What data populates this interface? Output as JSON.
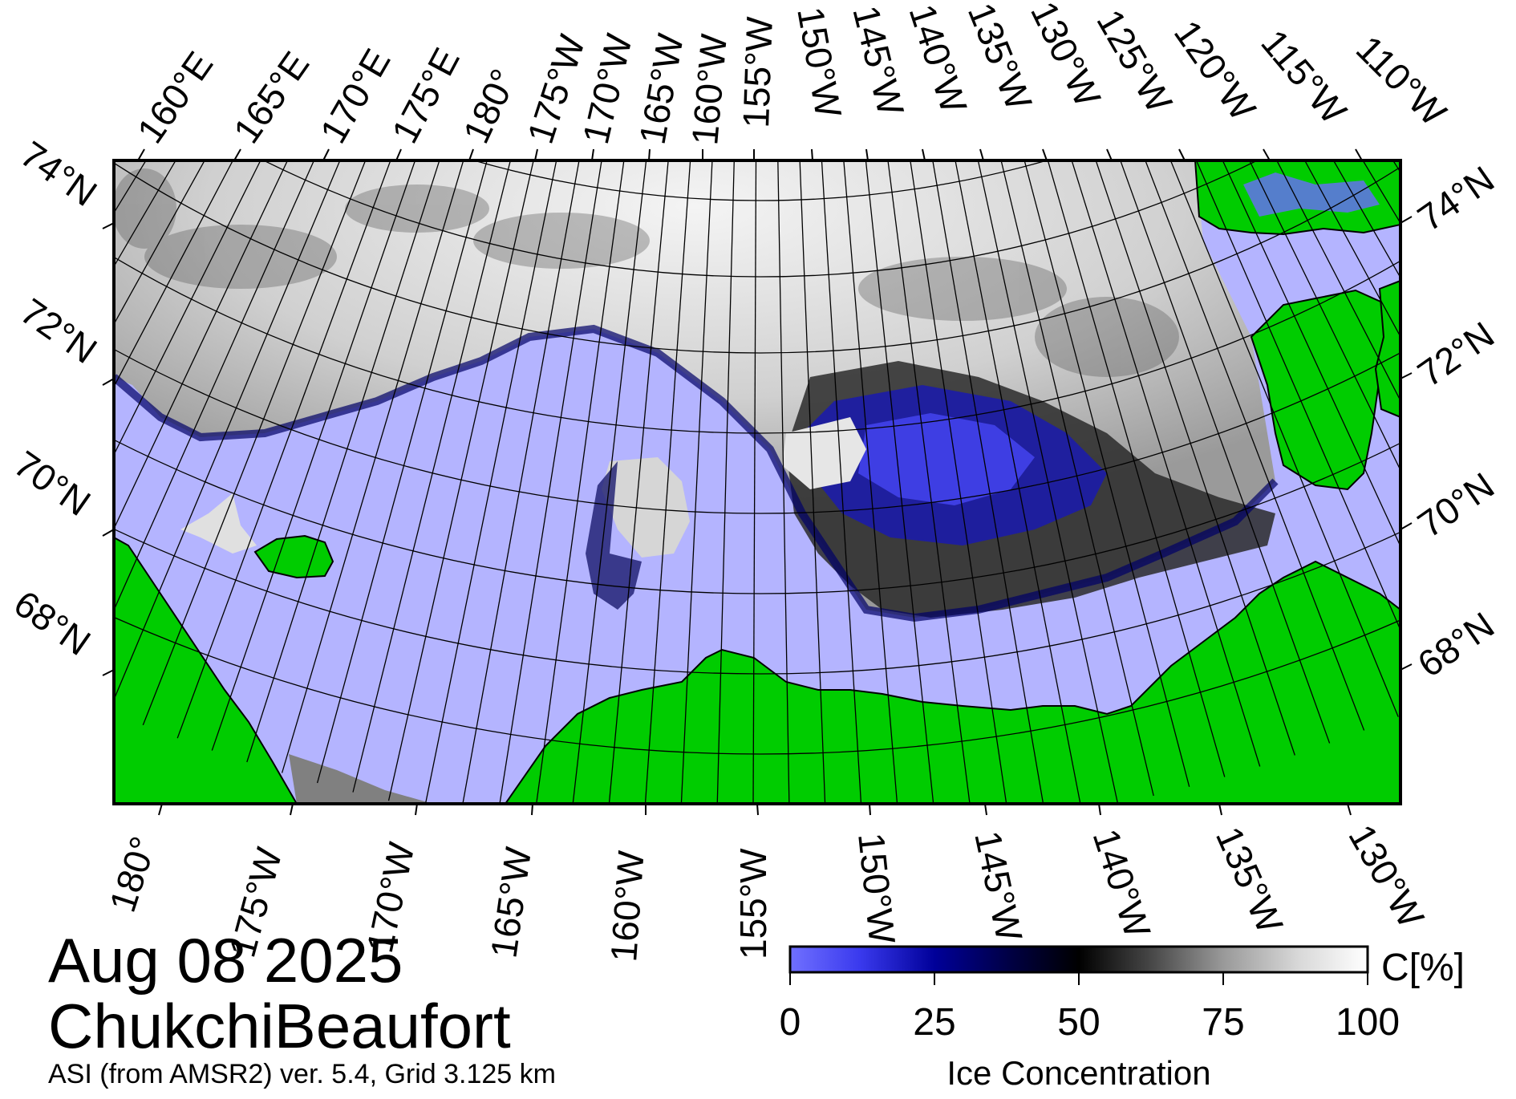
{
  "date": "Aug 08 2025",
  "region": "ChukchiBeaufort",
  "product": "ASI (from AMSR2) ver. 5.4,  Grid 3.125 km",
  "top_longitude_labels": [
    "160°E",
    "165°E",
    "170°E",
    "175°E",
    "180°",
    "175°W",
    "170°W",
    "165°W",
    "160°W",
    "155°W",
    "150°W",
    "145°W",
    "140°W",
    "135°W",
    "130°W",
    "125°W",
    "120°W",
    "115°W",
    "110°W"
  ],
  "bottom_longitude_labels": [
    "180°",
    "175°W",
    "170°W",
    "165°W",
    "160°W",
    "155°W",
    "150°W",
    "145°W",
    "140°W",
    "135°W",
    "130°W"
  ],
  "left_latitude_labels": [
    "74°N",
    "72°N",
    "70°N",
    "68°N"
  ],
  "right_latitude_labels": [
    "74°N",
    "72°N",
    "70°N",
    "68°N"
  ],
  "colorbar": {
    "unit": "C[%]",
    "title": "Ice Concentration",
    "ticks": [
      "0",
      "25",
      "50",
      "75",
      "100"
    ],
    "min": 0,
    "max": 100
  },
  "colors": {
    "land": "#00cc00",
    "open_water": "#b4b4ff",
    "no_data": "#808080",
    "low_ice": "#5a5aff",
    "mid_ice": "#000066",
    "high_ice": "#ffffff",
    "grid": "#000000"
  }
}
